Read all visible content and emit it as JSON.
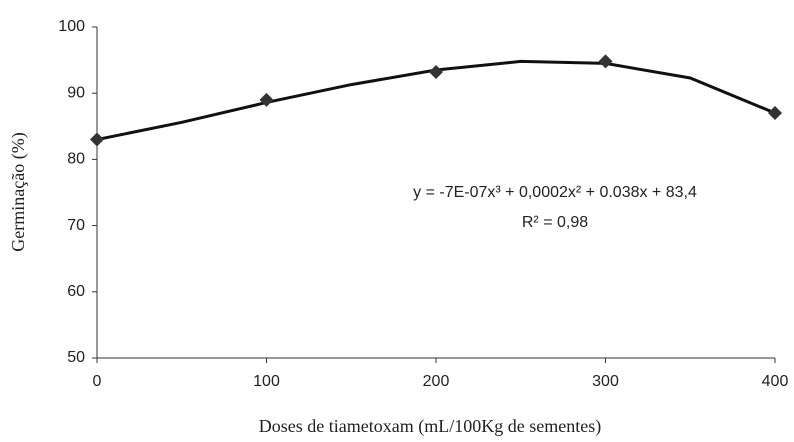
{
  "chart_data": {
    "type": "scatter",
    "xlabel": "Doses de tiametoxam (mL/100Kg de sementes)",
    "ylabel": "Germinação (%)",
    "x": [
      0,
      100,
      200,
      300,
      400
    ],
    "series": [
      {
        "values": [
          83,
          89,
          93.2,
          94.8,
          87
        ],
        "color": "#333333",
        "marker": "diamond"
      }
    ],
    "trendline": {
      "x": [
        0,
        50,
        100,
        150,
        200,
        250,
        300,
        350,
        400
      ],
      "values": [
        83,
        85.6,
        88.6,
        91.3,
        93.5,
        94.8,
        94.5,
        92.3,
        87
      ],
      "color": "#111111"
    },
    "annotations": [
      "y = -7E-07x³ + 0,0002x² + 0.038x + 83,4",
      "R² = 0,98"
    ],
    "xlim": [
      0,
      400
    ],
    "xticks": [
      0,
      100,
      200,
      300,
      400
    ],
    "ylim": [
      50,
      100
    ],
    "yticks": [
      50,
      60,
      70,
      80,
      90,
      100
    ]
  }
}
